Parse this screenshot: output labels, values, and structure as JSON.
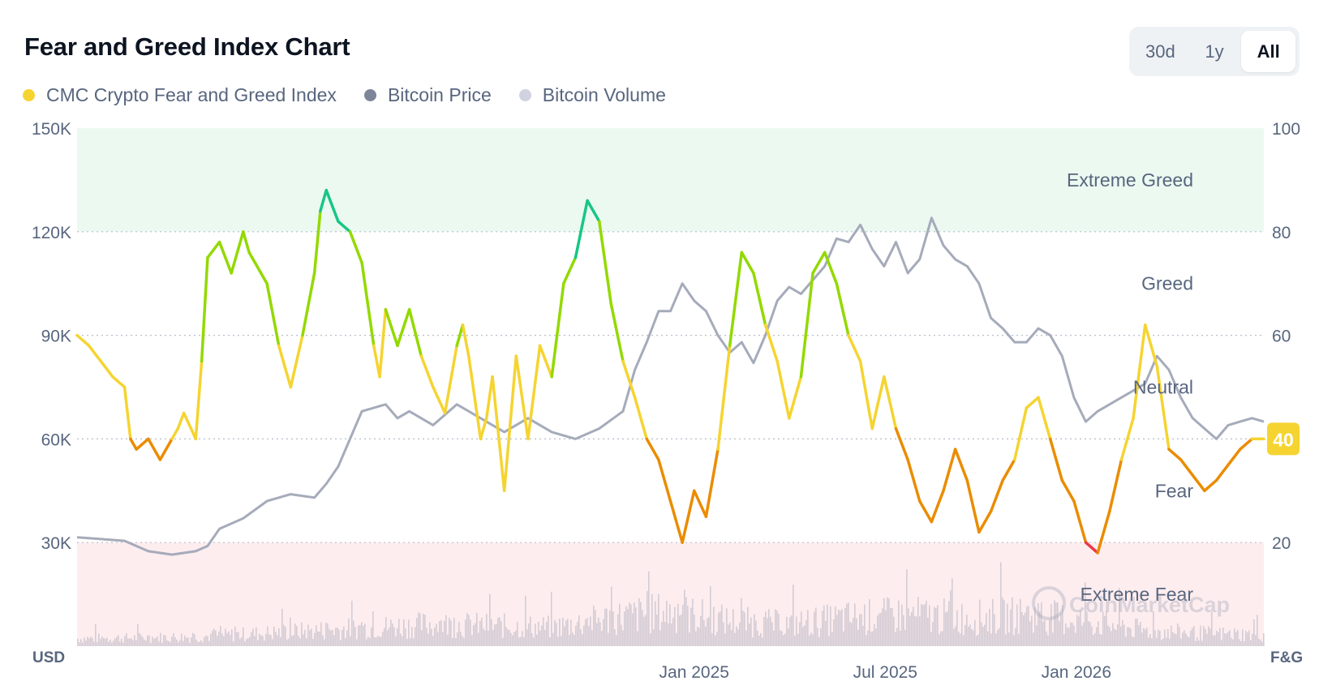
{
  "header": {
    "title": "Fear and Greed Index Chart",
    "ranges": [
      {
        "label": "30d",
        "active": false
      },
      {
        "label": "1y",
        "active": false
      },
      {
        "label": "All",
        "active": true
      }
    ]
  },
  "legend": [
    {
      "label": "CMC Crypto Fear and Greed Index",
      "color": "#f5d431"
    },
    {
      "label": "Bitcoin Price",
      "color": "#7e8599"
    },
    {
      "label": "Bitcoin Volume",
      "color": "#d0d3df"
    }
  ],
  "watermark": "CoinMarketCap",
  "current_value": "40",
  "chart_data": {
    "type": "line",
    "title": "Fear and Greed Index Chart",
    "left_axis_unit": "USD",
    "right_axis_unit": "F&G",
    "left_ticks": [
      "150K",
      "120K",
      "90K",
      "60K",
      "30K"
    ],
    "right_ticks": [
      "100",
      "80",
      "60",
      "40",
      "20"
    ],
    "x_ticks": [
      {
        "label": "Jan 2025",
        "t": 0.52
      },
      {
        "label": "Jul 2025",
        "t": 0.681
      },
      {
        "label": "Jan 2026",
        "t": 0.842
      }
    ],
    "price_ylim": [
      0,
      150000
    ],
    "index_ylim": [
      0,
      100
    ],
    "zones": [
      {
        "label": "Extreme Greed",
        "from": 80,
        "to": 100,
        "color": "#ecf9f1"
      },
      {
        "label": "Greed",
        "from": 60,
        "to": 80,
        "color": "#ffffff"
      },
      {
        "label": "Neutral",
        "from": 40,
        "to": 60,
        "color": "#ffffff"
      },
      {
        "label": "Fear",
        "from": 20,
        "to": 40,
        "color": "#ffffff"
      },
      {
        "label": "Extreme Fear",
        "from": 0,
        "to": 20,
        "color": "#fdedef"
      }
    ],
    "zone_colors": {
      "extreme_greed": "#16c784",
      "greed": "#93d900",
      "neutral": "#f5d431",
      "fear": "#ea8c00",
      "extreme_fear": "#ea3943"
    },
    "grid": true,
    "legend_position": "top-left",
    "series": [
      {
        "name": "CMC Crypto Fear and Greed Index",
        "axis": "right",
        "t": [
          0,
          0.01,
          0.02,
          0.03,
          0.04,
          0.045,
          0.05,
          0.06,
          0.07,
          0.08,
          0.085,
          0.09,
          0.1,
          0.105,
          0.11,
          0.12,
          0.13,
          0.14,
          0.145,
          0.15,
          0.16,
          0.17,
          0.18,
          0.19,
          0.2,
          0.205,
          0.21,
          0.22,
          0.23,
          0.24,
          0.25,
          0.255,
          0.26,
          0.27,
          0.28,
          0.29,
          0.3,
          0.31,
          0.32,
          0.325,
          0.33,
          0.34,
          0.345,
          0.35,
          0.36,
          0.37,
          0.38,
          0.39,
          0.4,
          0.41,
          0.42,
          0.43,
          0.44,
          0.45,
          0.46,
          0.47,
          0.48,
          0.49,
          0.5,
          0.51,
          0.52,
          0.53,
          0.54,
          0.55,
          0.56,
          0.57,
          0.58,
          0.59,
          0.6,
          0.61,
          0.62,
          0.63,
          0.64,
          0.65,
          0.66,
          0.67,
          0.68,
          0.69,
          0.7,
          0.71,
          0.72,
          0.73,
          0.74,
          0.75,
          0.76,
          0.77,
          0.78,
          0.79,
          0.8,
          0.81,
          0.82,
          0.83,
          0.84,
          0.85,
          0.86,
          0.87,
          0.88,
          0.89,
          0.9,
          0.91,
          0.92,
          0.93,
          0.94,
          0.95,
          0.96,
          0.97,
          0.98,
          0.99,
          1.0
        ],
        "values": [
          60,
          58,
          55,
          52,
          50,
          40,
          38,
          40,
          36,
          40,
          42,
          45,
          40,
          55,
          75,
          78,
          72,
          80,
          76,
          74,
          70,
          58,
          50,
          60,
          72,
          84,
          88,
          82,
          80,
          74,
          58,
          52,
          65,
          58,
          65,
          56,
          50,
          45,
          58,
          62,
          56,
          40,
          44,
          52,
          30,
          56,
          40,
          58,
          52,
          70,
          75,
          86,
          82,
          66,
          55,
          48,
          40,
          36,
          28,
          20,
          30,
          25,
          38,
          58,
          76,
          72,
          62,
          55,
          44,
          52,
          72,
          76,
          70,
          60,
          55,
          42,
          52,
          42,
          36,
          28,
          24,
          30,
          38,
          32,
          22,
          26,
          32,
          36,
          46,
          48,
          40,
          32,
          28,
          20,
          18,
          26,
          36,
          44,
          62,
          54,
          38,
          36,
          33,
          30,
          32,
          35,
          38,
          40,
          40
        ]
      },
      {
        "name": "Bitcoin Price",
        "axis": "left",
        "t": [
          0,
          0.02,
          0.04,
          0.06,
          0.07,
          0.08,
          0.1,
          0.11,
          0.12,
          0.14,
          0.16,
          0.18,
          0.2,
          0.21,
          0.22,
          0.24,
          0.26,
          0.27,
          0.28,
          0.3,
          0.32,
          0.34,
          0.36,
          0.38,
          0.4,
          0.42,
          0.44,
          0.46,
          0.47,
          0.48,
          0.49,
          0.5,
          0.51,
          0.52,
          0.53,
          0.54,
          0.55,
          0.56,
          0.57,
          0.58,
          0.59,
          0.6,
          0.61,
          0.62,
          0.63,
          0.64,
          0.65,
          0.66,
          0.67,
          0.68,
          0.69,
          0.7,
          0.71,
          0.72,
          0.73,
          0.74,
          0.75,
          0.76,
          0.77,
          0.78,
          0.79,
          0.8,
          0.81,
          0.82,
          0.83,
          0.84,
          0.85,
          0.86,
          0.87,
          0.88,
          0.89,
          0.9,
          0.91,
          0.92,
          0.93,
          0.94,
          0.95,
          0.96,
          0.97,
          0.98,
          0.99,
          1.0
        ],
        "values": [
          31500,
          31000,
          30500,
          27500,
          27000,
          26500,
          27500,
          29000,
          34000,
          37000,
          42000,
          44000,
          43000,
          47000,
          52000,
          68000,
          70000,
          66000,
          68000,
          64000,
          70000,
          66000,
          62000,
          66000,
          62000,
          60000,
          63000,
          68000,
          80000,
          88000,
          97000,
          97000,
          105000,
          100000,
          97000,
          90000,
          85000,
          88000,
          82000,
          90000,
          100000,
          104000,
          102000,
          106000,
          110000,
          118000,
          117000,
          122000,
          115000,
          110000,
          117000,
          108000,
          112000,
          124000,
          116000,
          112000,
          110000,
          105000,
          95000,
          92000,
          88000,
          88000,
          92000,
          90000,
          84000,
          72000,
          65000,
          68000,
          70000,
          72000,
          74000,
          76000,
          84000,
          80000,
          72000,
          66000,
          63000,
          60000,
          64000,
          65000,
          66000,
          65000
        ]
      },
      {
        "name": "Bitcoin Volume",
        "axis": "volume",
        "t": [
          0,
          0.1,
          0.2,
          0.3,
          0.4,
          0.45,
          0.5,
          0.55,
          0.6,
          0.65,
          0.7,
          0.75,
          0.8,
          0.85,
          0.9,
          0.95,
          1.0
        ],
        "values": [
          0.12,
          0.15,
          0.25,
          0.35,
          0.3,
          0.45,
          0.55,
          0.4,
          0.35,
          0.45,
          0.5,
          0.45,
          0.5,
          0.4,
          0.25,
          0.2,
          0.18
        ]
      }
    ]
  }
}
